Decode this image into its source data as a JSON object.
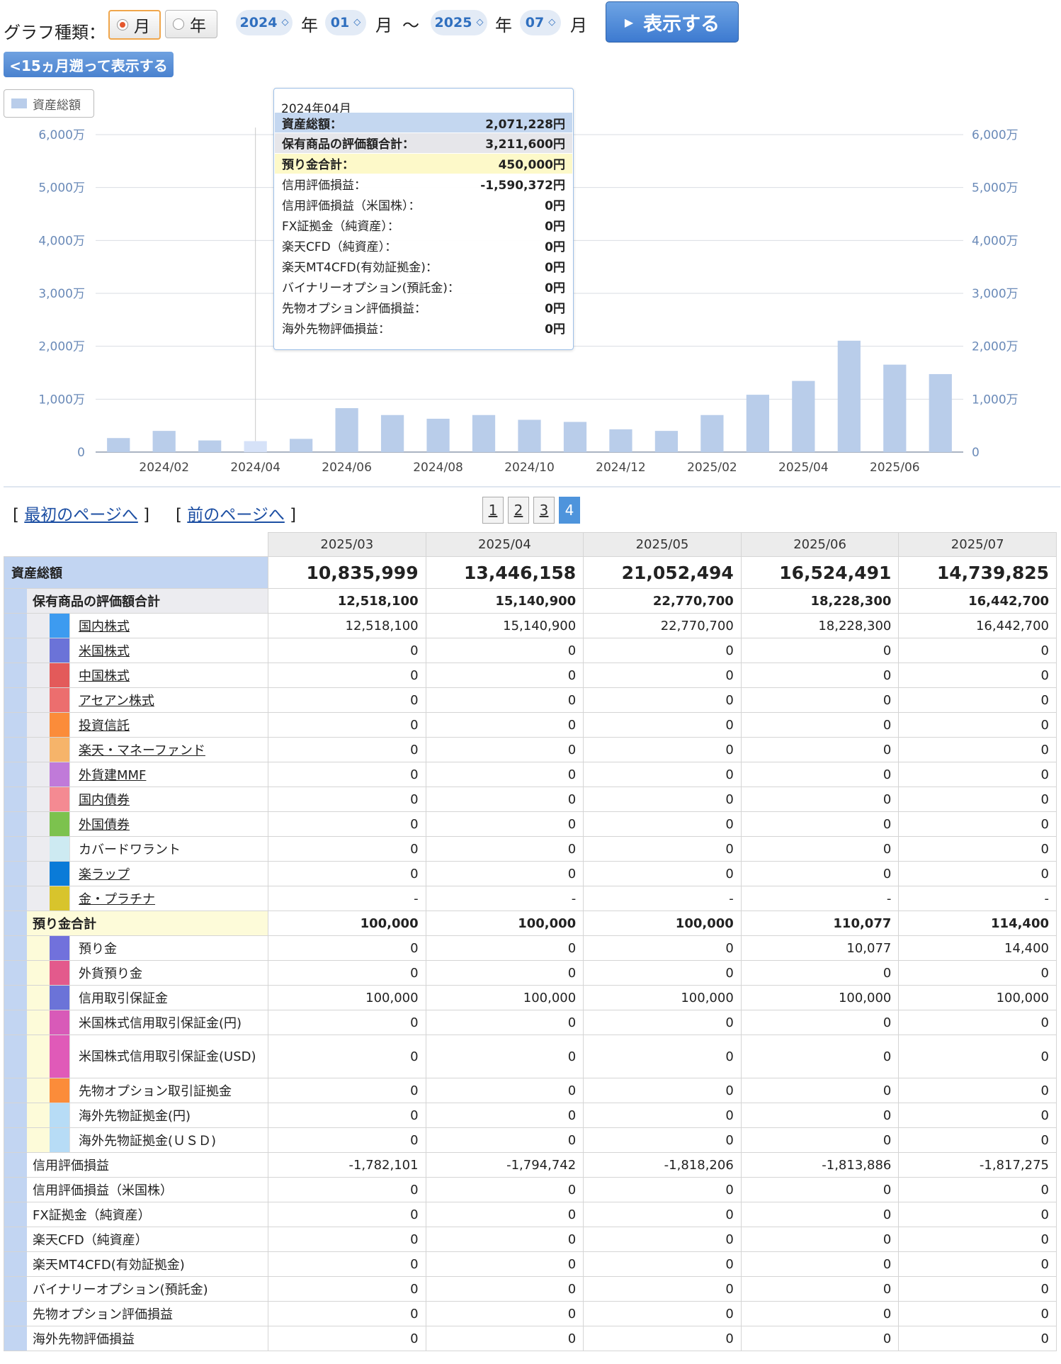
{
  "controls": {
    "graph_type_label": "グラフ種類：",
    "radio_month": "月",
    "radio_year": "年",
    "from_year": "2024",
    "from_month": "01",
    "to_year": "2025",
    "to_month": "07",
    "year_unit": "年",
    "month_unit": "月",
    "tilde": "〜",
    "show_button": "表示する",
    "back_button": "<15ヵ月遡って表示する"
  },
  "legend": {
    "label": "資産総額",
    "color": "#b9cdea"
  },
  "chart_data": {
    "type": "bar",
    "series": [
      {
        "name": "資産総額",
        "color": "#b9cdea"
      }
    ],
    "categories": [
      "2024/01",
      "2024/02",
      "2024/03",
      "2024/04",
      "2024/05",
      "2024/06",
      "2024/07",
      "2024/08",
      "2024/09",
      "2024/10",
      "2024/11",
      "2024/12",
      "2025/01",
      "2025/02",
      "2025/03",
      "2025/04",
      "2025/05",
      "2025/06",
      "2025/07"
    ],
    "values": [
      2650000,
      4000000,
      2200000,
      2071228,
      2500000,
      8300000,
      7000000,
      6300000,
      7000000,
      6100000,
      5700000,
      4300000,
      4000000,
      7000000,
      10835999,
      13446158,
      21052494,
      16524491,
      14739825
    ],
    "x_tick_labels": [
      "2024/02",
      "2024/04",
      "2024/06",
      "2024/08",
      "2024/10",
      "2024/12",
      "2025/02",
      "2025/04",
      "2025/06"
    ],
    "y_ticks": [
      "0",
      "1,000万",
      "2,000万",
      "3,000万",
      "4,000万",
      "5,000万",
      "6,000万"
    ],
    "ylim": [
      0,
      60000000
    ],
    "highlight_category": "2024/04",
    "highlight_color": "#d6e2f8",
    "grid": true
  },
  "tooltip": {
    "title": "2024年04月",
    "rows": [
      {
        "k": "資産総額：",
        "v": "2,071,228円",
        "bg": "#c4d7f0",
        "bold": true
      },
      {
        "k": "保有商品の評価額合計：",
        "v": "3,211,600円",
        "bg": "#e6e6ea",
        "bold": true
      },
      {
        "k": "預り金合計：",
        "v": "450,000円",
        "bg": "#fdf9c9",
        "bold": true
      },
      {
        "k": "信用評価損益：",
        "v": "-1,590,372円",
        "bg": "",
        "bold": false
      },
      {
        "k": "信用評価損益（米国株）：",
        "v": "0円",
        "bg": "",
        "bold": false
      },
      {
        "k": "FX証拠金（純資産）：",
        "v": "0円",
        "bg": "",
        "bold": false
      },
      {
        "k": "楽天CFD（純資産）：",
        "v": "0円",
        "bg": "",
        "bold": false
      },
      {
        "k": "楽天MT4CFD(有効証拠金)：",
        "v": "0円",
        "bg": "",
        "bold": false
      },
      {
        "k": "バイナリーオプション(預託金)：",
        "v": "0円",
        "bg": "",
        "bold": false
      },
      {
        "k": "先物オプション評価損益：",
        "v": "0円",
        "bg": "",
        "bold": false
      },
      {
        "k": "海外先物評価損益：",
        "v": "0円",
        "bg": "",
        "bold": false
      }
    ]
  },
  "pager": {
    "first": "最初のページへ",
    "prev": "前のページへ",
    "pages": [
      "1",
      "2",
      "3",
      "4"
    ],
    "current": "4"
  },
  "table": {
    "columns": [
      "2025/03",
      "2025/04",
      "2025/05",
      "2025/06",
      "2025/07"
    ],
    "total": {
      "label": "資産総額",
      "values": [
        "10,835,999",
        "13,446,158",
        "21,052,494",
        "16,524,491",
        "14,739,825"
      ]
    },
    "holdings_total": {
      "label": "保有商品の評価額合計",
      "values": [
        "12,518,100",
        "15,140,900",
        "22,770,700",
        "18,228,300",
        "16,442,700"
      ]
    },
    "holdings": [
      {
        "label": "国内株式",
        "color": "#3d9bf0",
        "link": true,
        "values": [
          "12,518,100",
          "15,140,900",
          "22,770,700",
          "18,228,300",
          "16,442,700"
        ]
      },
      {
        "label": "米国株式",
        "color": "#6b73d8",
        "link": true,
        "values": [
          "0",
          "0",
          "0",
          "0",
          "0"
        ]
      },
      {
        "label": "中国株式",
        "color": "#e35a5a",
        "link": true,
        "values": [
          "0",
          "0",
          "0",
          "0",
          "0"
        ]
      },
      {
        "label": "アセアン株式",
        "color": "#ec6e6e",
        "link": true,
        "values": [
          "0",
          "0",
          "0",
          "0",
          "0"
        ]
      },
      {
        "label": "投資信託",
        "color": "#fb8c3a",
        "link": true,
        "values": [
          "0",
          "0",
          "0",
          "0",
          "0"
        ]
      },
      {
        "label": "楽天・マネーファンド",
        "color": "#f6b46a",
        "link": true,
        "values": [
          "0",
          "0",
          "0",
          "0",
          "0"
        ]
      },
      {
        "label": "外貨建MMF",
        "color": "#c07ad9",
        "link": true,
        "values": [
          "0",
          "0",
          "0",
          "0",
          "0"
        ]
      },
      {
        "label": "国内債券",
        "color": "#f48a92",
        "link": true,
        "values": [
          "0",
          "0",
          "0",
          "0",
          "0"
        ]
      },
      {
        "label": "外国債券",
        "color": "#7cc24e",
        "link": true,
        "values": [
          "0",
          "0",
          "0",
          "0",
          "0"
        ]
      },
      {
        "label": "カバードワラント",
        "color": "#cdeaf2",
        "link": false,
        "values": [
          "0",
          "0",
          "0",
          "0",
          "0"
        ]
      },
      {
        "label": "楽ラップ",
        "color": "#0a7bd8",
        "link": true,
        "values": [
          "0",
          "0",
          "0",
          "0",
          "0"
        ]
      },
      {
        "label": "金・プラチナ",
        "color": "#d8c42c",
        "link": true,
        "values": [
          "-",
          "-",
          "-",
          "-",
          "-"
        ]
      }
    ],
    "deposits_total": {
      "label": "預り金合計",
      "values": [
        "100,000",
        "100,000",
        "100,000",
        "110,077",
        "114,400"
      ]
    },
    "deposits": [
      {
        "label": "預り金",
        "color": "#7171dc",
        "values": [
          "0",
          "0",
          "0",
          "10,077",
          "14,400"
        ]
      },
      {
        "label": "外貨預り金",
        "color": "#e35a8c",
        "values": [
          "0",
          "0",
          "0",
          "0",
          "0"
        ]
      },
      {
        "label": "信用取引保証金",
        "color": "#6b73d8",
        "values": [
          "100,000",
          "100,000",
          "100,000",
          "100,000",
          "100,000"
        ]
      },
      {
        "label": "米国株式信用取引保証金(円)",
        "color": "#d85ab8",
        "values": [
          "0",
          "0",
          "0",
          "0",
          "0"
        ]
      },
      {
        "label": "米国株式信用取引保証金(USD)",
        "color": "#e05ab8",
        "values": [
          "0",
          "0",
          "0",
          "0",
          "0"
        ]
      },
      {
        "label": "先物オプション取引証拠金",
        "color": "#fb8c3a",
        "values": [
          "0",
          "0",
          "0",
          "0",
          "0"
        ]
      },
      {
        "label": "海外先物証拠金(円)",
        "color": "#b7dcf6",
        "values": [
          "0",
          "0",
          "0",
          "0",
          "0"
        ]
      },
      {
        "label": "海外先物証拠金(ＵＳＤ)",
        "color": "#b7dcf6",
        "values": [
          "0",
          "0",
          "0",
          "0",
          "0"
        ]
      }
    ],
    "others": [
      {
        "label": "信用評価損益",
        "values": [
          "-1,782,101",
          "-1,794,742",
          "-1,818,206",
          "-1,813,886",
          "-1,817,275"
        ]
      },
      {
        "label": "信用評価損益（米国株）",
        "values": [
          "0",
          "0",
          "0",
          "0",
          "0"
        ]
      },
      {
        "label": "FX証拠金（純資産）",
        "values": [
          "0",
          "0",
          "0",
          "0",
          "0"
        ]
      },
      {
        "label": "楽天CFD（純資産）",
        "values": [
          "0",
          "0",
          "0",
          "0",
          "0"
        ]
      },
      {
        "label": "楽天MT4CFD(有効証拠金)",
        "values": [
          "0",
          "0",
          "0",
          "0",
          "0"
        ]
      },
      {
        "label": "バイナリーオプション(預託金)",
        "values": [
          "0",
          "0",
          "0",
          "0",
          "0"
        ]
      },
      {
        "label": "先物オプション評価損益",
        "values": [
          "0",
          "0",
          "0",
          "0",
          "0"
        ]
      },
      {
        "label": "海外先物評価損益",
        "values": [
          "0",
          "0",
          "0",
          "0",
          "0"
        ]
      }
    ]
  }
}
